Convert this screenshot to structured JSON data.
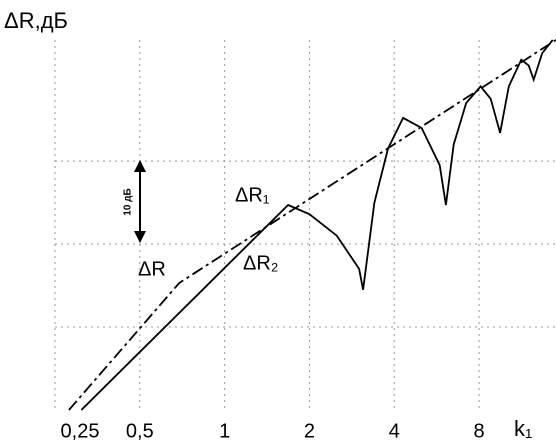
{
  "chart_data": {
    "type": "line",
    "title": "ΔR,дБ",
    "x_label": "k₁",
    "log_x": true,
    "xlim": [
      0.25,
      15
    ],
    "ylim": [
      0,
      47
    ],
    "xticks": [
      {
        "value": 0.25,
        "label": "0,25"
      },
      {
        "value": 0.5,
        "label": "0,5"
      },
      1,
      2,
      4,
      8
    ],
    "ygrid": [
      10,
      20,
      30
    ],
    "grid": true,
    "series": [
      {
        "color": "#000000",
        "dash": true,
        "x": [
          0.28,
          0.69,
          15
        ],
        "values": [
          0,
          15.3,
          44.6
        ]
      },
      {
        "color": "#000000",
        "dash": false,
        "x": [
          0.31,
          1.68,
          2.0,
          2.5,
          3.0,
          3.1,
          3.4,
          3.8,
          4.3,
          5.0,
          5.8,
          6.1,
          6.5,
          7.2,
          8.1,
          8.8,
          9.5,
          10.2,
          11.3,
          12.0,
          12.5,
          13.4,
          14.6
        ],
        "values": [
          0,
          24.7,
          23.6,
          21,
          17,
          14.5,
          25,
          31.5,
          35.2,
          34,
          29.5,
          24.7,
          32,
          37,
          39,
          37.5,
          33.4,
          39,
          42.2,
          41.5,
          39.8,
          43,
          44.6
        ]
      }
    ],
    "annotations": [
      "ΔR",
      "ΔR₁",
      "ΔR₂",
      "10 дБ"
    ]
  }
}
